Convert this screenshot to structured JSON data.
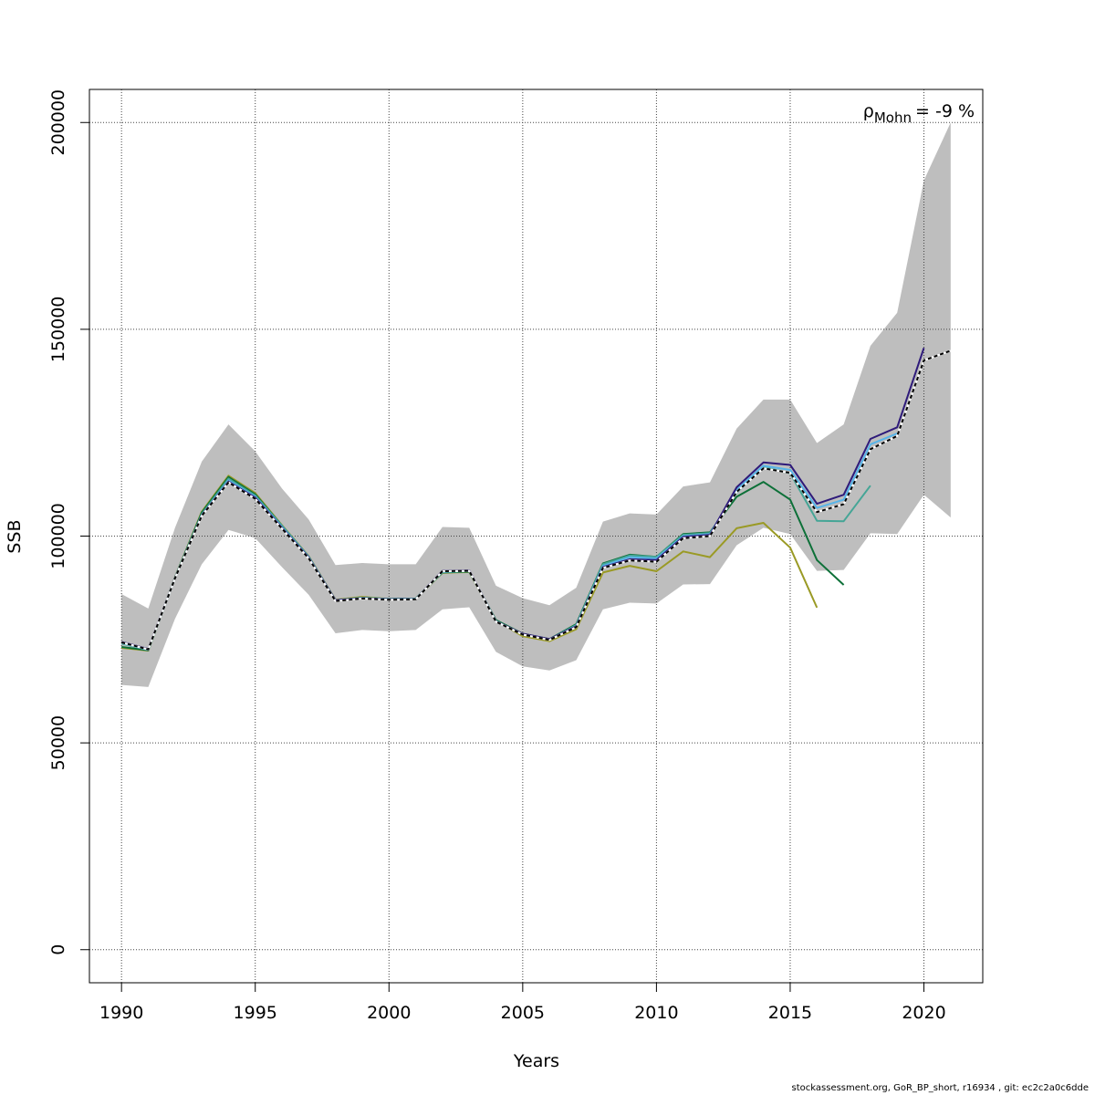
{
  "chart_data": {
    "type": "line",
    "xlabel": "Years",
    "ylabel": "SSB",
    "xlim": [
      1988.8,
      2022.2
    ],
    "ylim": [
      -8000,
      208000
    ],
    "xticks": [
      1990,
      1995,
      2000,
      2005,
      2010,
      2015,
      2020
    ],
    "yticks": [
      0,
      50000,
      100000,
      150000,
      200000
    ],
    "grid": true,
    "annotation": {
      "symbol": "ρ",
      "subscript": "Mohn",
      "text": "= -9 %"
    },
    "confidence_band": {
      "color": "#bebebe",
      "x": [
        1990,
        1991,
        1992,
        1993,
        1994,
        1995,
        1996,
        1997,
        1998,
        1999,
        2000,
        2001,
        2002,
        2003,
        2004,
        2005,
        2006,
        2007,
        2008,
        2009,
        2010,
        2011,
        2012,
        2013,
        2014,
        2015,
        2016,
        2017,
        2018,
        2019,
        2020,
        2021
      ],
      "upper": [
        86000,
        82500,
        102000,
        118000,
        127000,
        120500,
        111500,
        104000,
        93000,
        93500,
        93200,
        93200,
        102200,
        102000,
        88000,
        85000,
        83300,
        87500,
        103500,
        105500,
        105200,
        112000,
        113000,
        126000,
        133000,
        133000,
        122500,
        127000,
        146000,
        154000,
        186000,
        200000
      ],
      "lower": [
        64000,
        63500,
        80000,
        93200,
        101500,
        99500,
        92500,
        85800,
        76500,
        77300,
        77000,
        77300,
        82300,
        82800,
        72000,
        68500,
        67500,
        70000,
        82300,
        83900,
        83700,
        88300,
        88400,
        97800,
        102000,
        100500,
        91600,
        91800,
        100700,
        100500,
        110000,
        104500
      ]
    },
    "series": [
      {
        "color": "#000000",
        "dashed": true,
        "x": [
          1990,
          1991,
          1992,
          1993,
          1994,
          1995,
          1996,
          1997,
          1998,
          1999,
          2000,
          2001,
          2002,
          2003,
          2004,
          2005,
          2006,
          2007,
          2008,
          2009,
          2010,
          2011,
          2012,
          2013,
          2014,
          2015,
          2016,
          2017,
          2018,
          2019,
          2020,
          2021
        ],
        "values": [
          74300,
          72600,
          89800,
          104900,
          113000,
          109000,
          101800,
          94600,
          84300,
          84900,
          84600,
          84700,
          91500,
          91600,
          79300,
          76200,
          74900,
          78000,
          92300,
          94100,
          93800,
          99500,
          100000,
          110700,
          116400,
          115300,
          105800,
          107700,
          121000,
          124200,
          142500,
          144800
        ]
      },
      {
        "color": "#2e1a7a",
        "x": [
          1990,
          1991,
          1992,
          1993,
          1994,
          1995,
          1996,
          1997,
          1998,
          1999,
          2000,
          2001,
          2002,
          2003,
          2004,
          2005,
          2006,
          2007,
          2008,
          2009,
          2010,
          2011,
          2012,
          2013,
          2014,
          2015,
          2016,
          2017,
          2018,
          2019,
          2020
        ],
        "values": [
          74400,
          72700,
          89900,
          105000,
          113200,
          109300,
          102000,
          94800,
          84500,
          85000,
          84700,
          84800,
          91600,
          91700,
          79400,
          76400,
          75100,
          78200,
          92500,
          94400,
          94200,
          99800,
          100300,
          111800,
          117800,
          117200,
          107800,
          110000,
          123500,
          126300,
          145500
        ]
      },
      {
        "color": "#56b4e9",
        "x": [
          1990,
          1991,
          1992,
          1993,
          1994,
          1995,
          1996,
          1997,
          1998,
          1999,
          2000,
          2001,
          2002,
          2003,
          2004,
          2005,
          2006,
          2007,
          2008,
          2009,
          2010,
          2011,
          2012,
          2013,
          2014,
          2015,
          2016,
          2017,
          2018,
          2019
        ],
        "values": [
          74200,
          72500,
          89800,
          105000,
          113500,
          109500,
          102200,
          94900,
          84500,
          85000,
          84700,
          84800,
          91400,
          91600,
          79400,
          76200,
          75000,
          78300,
          92800,
          94900,
          94600,
          100000,
          100500,
          111200,
          117000,
          116000,
          106800,
          108800,
          122200,
          124800
        ]
      },
      {
        "color": "#45a596",
        "x": [
          1990,
          1991,
          1992,
          1993,
          1994,
          1995,
          1996,
          1997,
          1998,
          1999,
          2000,
          2001,
          2002,
          2003,
          2004,
          2005,
          2006,
          2007,
          2008,
          2009,
          2010,
          2011,
          2012,
          2013,
          2014,
          2015,
          2016,
          2017,
          2018
        ],
        "values": [
          74000,
          72500,
          89900,
          105300,
          113900,
          109800,
          102500,
          95000,
          84500,
          85100,
          84800,
          84900,
          91300,
          91500,
          79500,
          76200,
          75000,
          78500,
          93200,
          95300,
          95000,
          100300,
          100700,
          110500,
          116700,
          115200,
          103700,
          103600,
          112200
        ]
      },
      {
        "color": "#0d7038",
        "x": [
          1990,
          1991,
          1992,
          1993,
          1994,
          1995,
          1996,
          1997,
          1998,
          1999,
          2000,
          2001,
          2002,
          2003,
          2004,
          2005,
          2006,
          2007,
          2008,
          2009,
          2010,
          2011,
          2012,
          2013,
          2014,
          2015,
          2016,
          2017
        ],
        "values": [
          73200,
          72400,
          90000,
          105700,
          114300,
          110100,
          102500,
          95000,
          84500,
          85100,
          84800,
          84900,
          91200,
          91400,
          79700,
          76400,
          75100,
          78700,
          93400,
          95500,
          95000,
          100500,
          100900,
          109500,
          113100,
          108800,
          94200,
          88200
        ]
      },
      {
        "color": "#9a9a25",
        "x": [
          1990,
          1991,
          1992,
          1993,
          1994,
          1995,
          1996,
          1997,
          1998,
          1999,
          2000,
          2001,
          2002,
          2003,
          2004,
          2005,
          2006,
          2007,
          2008,
          2009,
          2010,
          2011,
          2012,
          2013,
          2014,
          2015,
          2016
        ],
        "values": [
          73000,
          72300,
          90000,
          105900,
          114600,
          110400,
          102600,
          95100,
          84600,
          85300,
          84800,
          84900,
          91100,
          91300,
          79600,
          75800,
          74600,
          77500,
          91200,
          92800,
          91500,
          96300,
          94900,
          101900,
          103200,
          97200,
          82700
        ]
      }
    ]
  },
  "footer": "stockassessment.org, GoR_BP_short, r16934 , git: ec2c2a0c6dde"
}
